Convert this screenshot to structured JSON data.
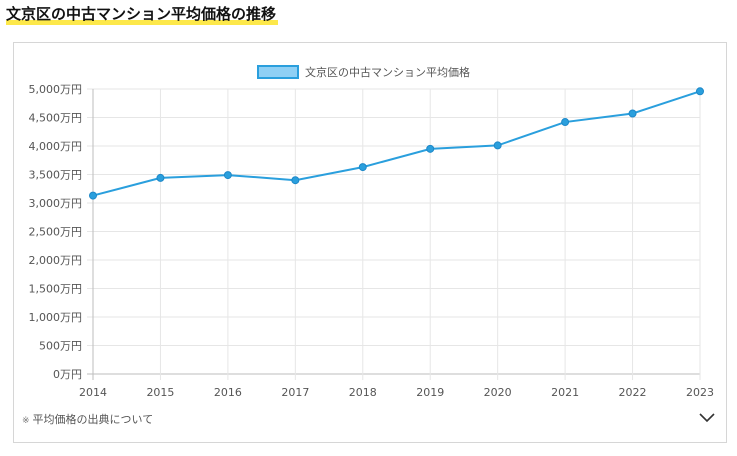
{
  "heading": "文京区の中古マンション平均価格の推移",
  "footnote": {
    "mark": "※",
    "text": "平均価格の出典について"
  },
  "icons": {
    "expand": "chevron-down-icon"
  },
  "colors": {
    "line": "#2a9fdd",
    "legend_fill": "#8fd0f5",
    "grid": "#e6e6e6",
    "highlight": "#fde84a"
  },
  "chart_data": {
    "type": "line",
    "title": "",
    "xlabel": "",
    "ylabel": "",
    "categories": [
      "2014",
      "2015",
      "2016",
      "2017",
      "2018",
      "2019",
      "2020",
      "2021",
      "2022",
      "2023"
    ],
    "series": [
      {
        "name": "文京区の中古マンション平均価格",
        "values": [
          3130,
          3440,
          3490,
          3400,
          3630,
          3950,
          4010,
          4420,
          4570,
          4960
        ]
      }
    ],
    "ylim": [
      0,
      5000
    ],
    "yticks": [
      0,
      500,
      1000,
      1500,
      2000,
      2500,
      3000,
      3500,
      4000,
      4500,
      5000
    ],
    "ytick_labels": [
      "0万円",
      "500万円",
      "1,000万円",
      "1,500万円",
      "2,000万円",
      "2,500万円",
      "3,000万円",
      "3,500万円",
      "4,000万円",
      "4,500万円",
      "5,000万円"
    ],
    "grid": true,
    "legend_position": "top-center"
  }
}
